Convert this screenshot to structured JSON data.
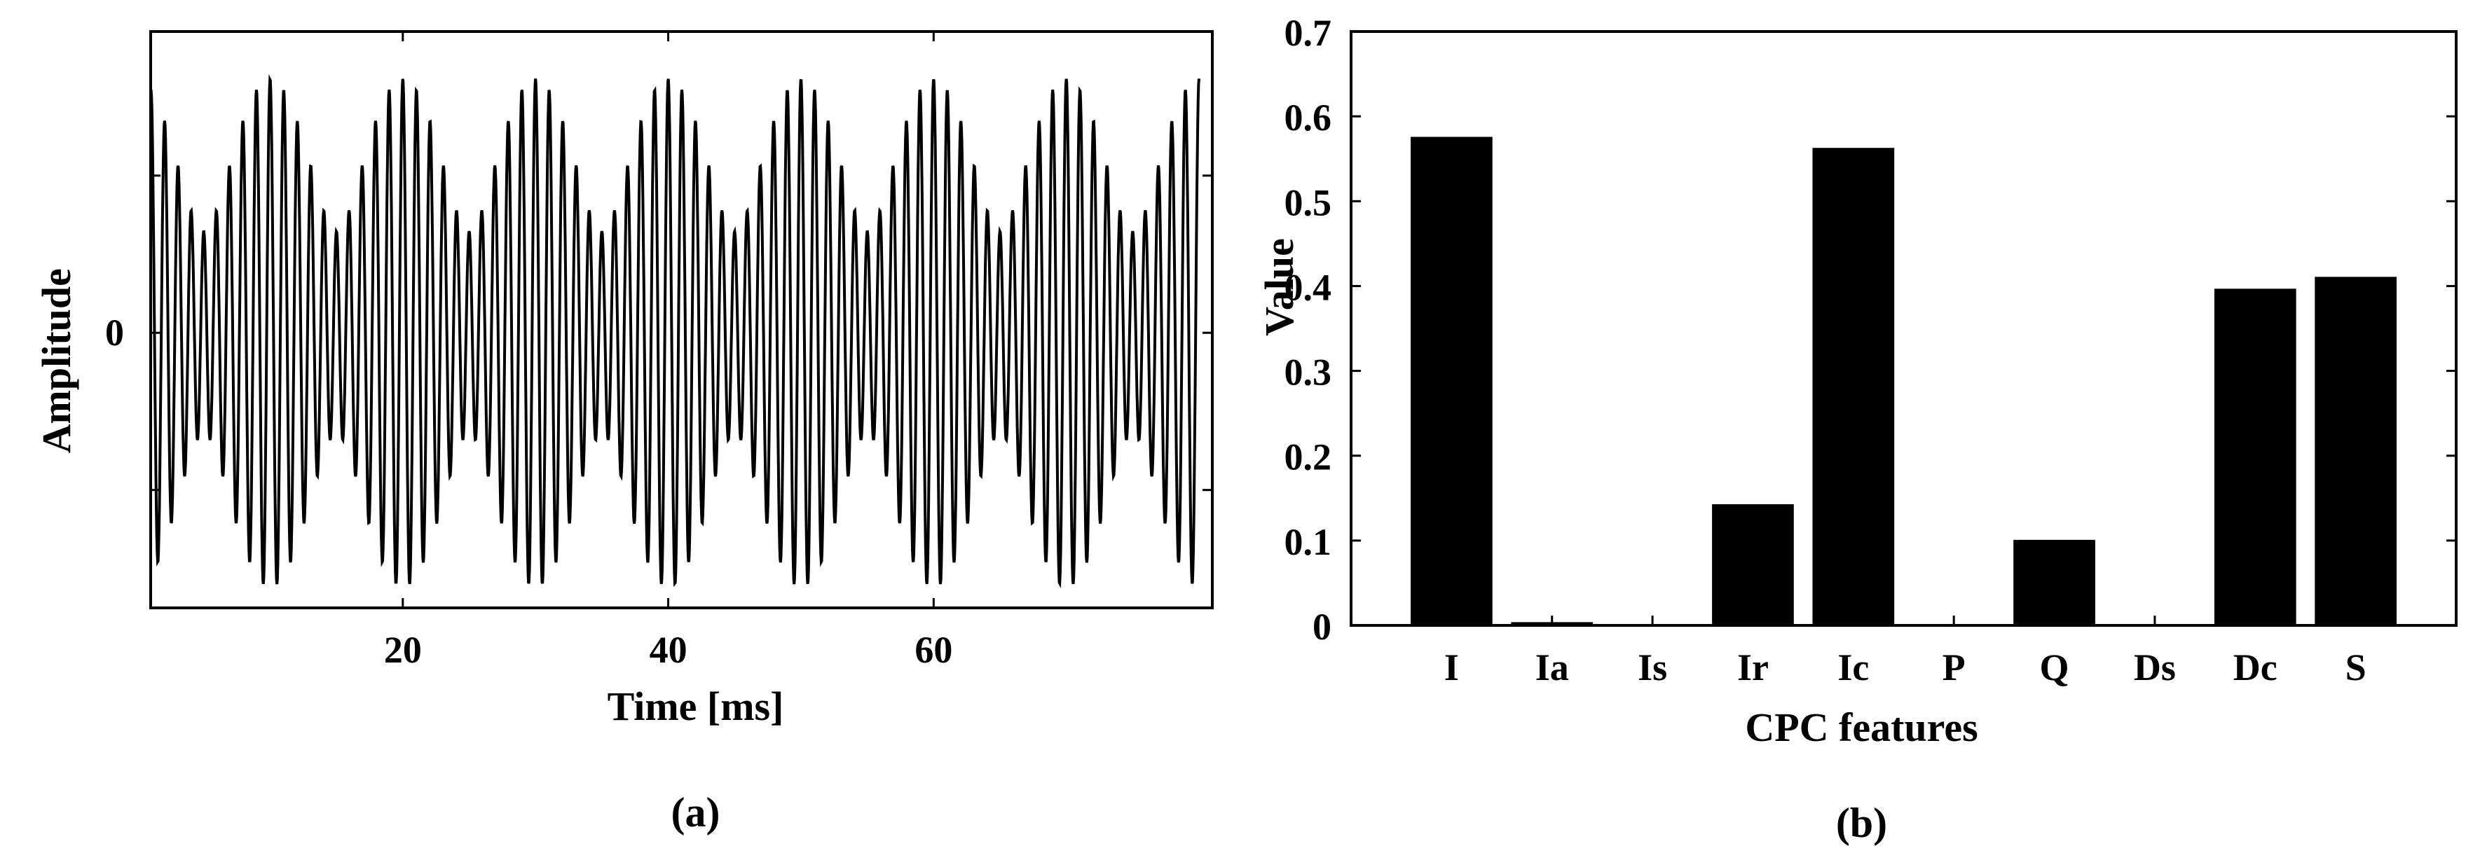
{
  "chart_data": [
    {
      "type": "line",
      "caption": "(a)",
      "xlabel": "Time [ms]",
      "ylabel": "Amplitude",
      "x_ticks": [
        20,
        40,
        60
      ],
      "y_ticks": [
        "0"
      ],
      "xlim": [
        1,
        81
      ],
      "ylim": [
        -1.05,
        1.15
      ],
      "grid": false,
      "signal": {
        "description_free": true,
        "x_start": 1,
        "x_end": 80,
        "components": [
          {
            "freq_per_ms": 0.5,
            "amp": 0.7
          },
          {
            "freq_per_ms": 0.45,
            "amp": 0.3
          }
        ]
      }
    },
    {
      "type": "bar",
      "caption": "(b)",
      "xlabel": "CPC features",
      "ylabel": "Value",
      "categories": [
        "I",
        "Ia",
        "Is",
        "Ir",
        "Ic",
        "P",
        "Q",
        "Ds",
        "Dc",
        "S"
      ],
      "values": [
        0.575,
        0.003,
        0.0,
        0.142,
        0.562,
        0.0,
        0.1,
        0.0,
        0.396,
        0.41
      ],
      "ylim": [
        0,
        0.7
      ],
      "y_ticks": [
        "0",
        "0.1",
        "0.2",
        "0.3",
        "0.4",
        "0.5",
        "0.6",
        "0.7"
      ],
      "bar_color": "#000000",
      "grid": false
    }
  ]
}
